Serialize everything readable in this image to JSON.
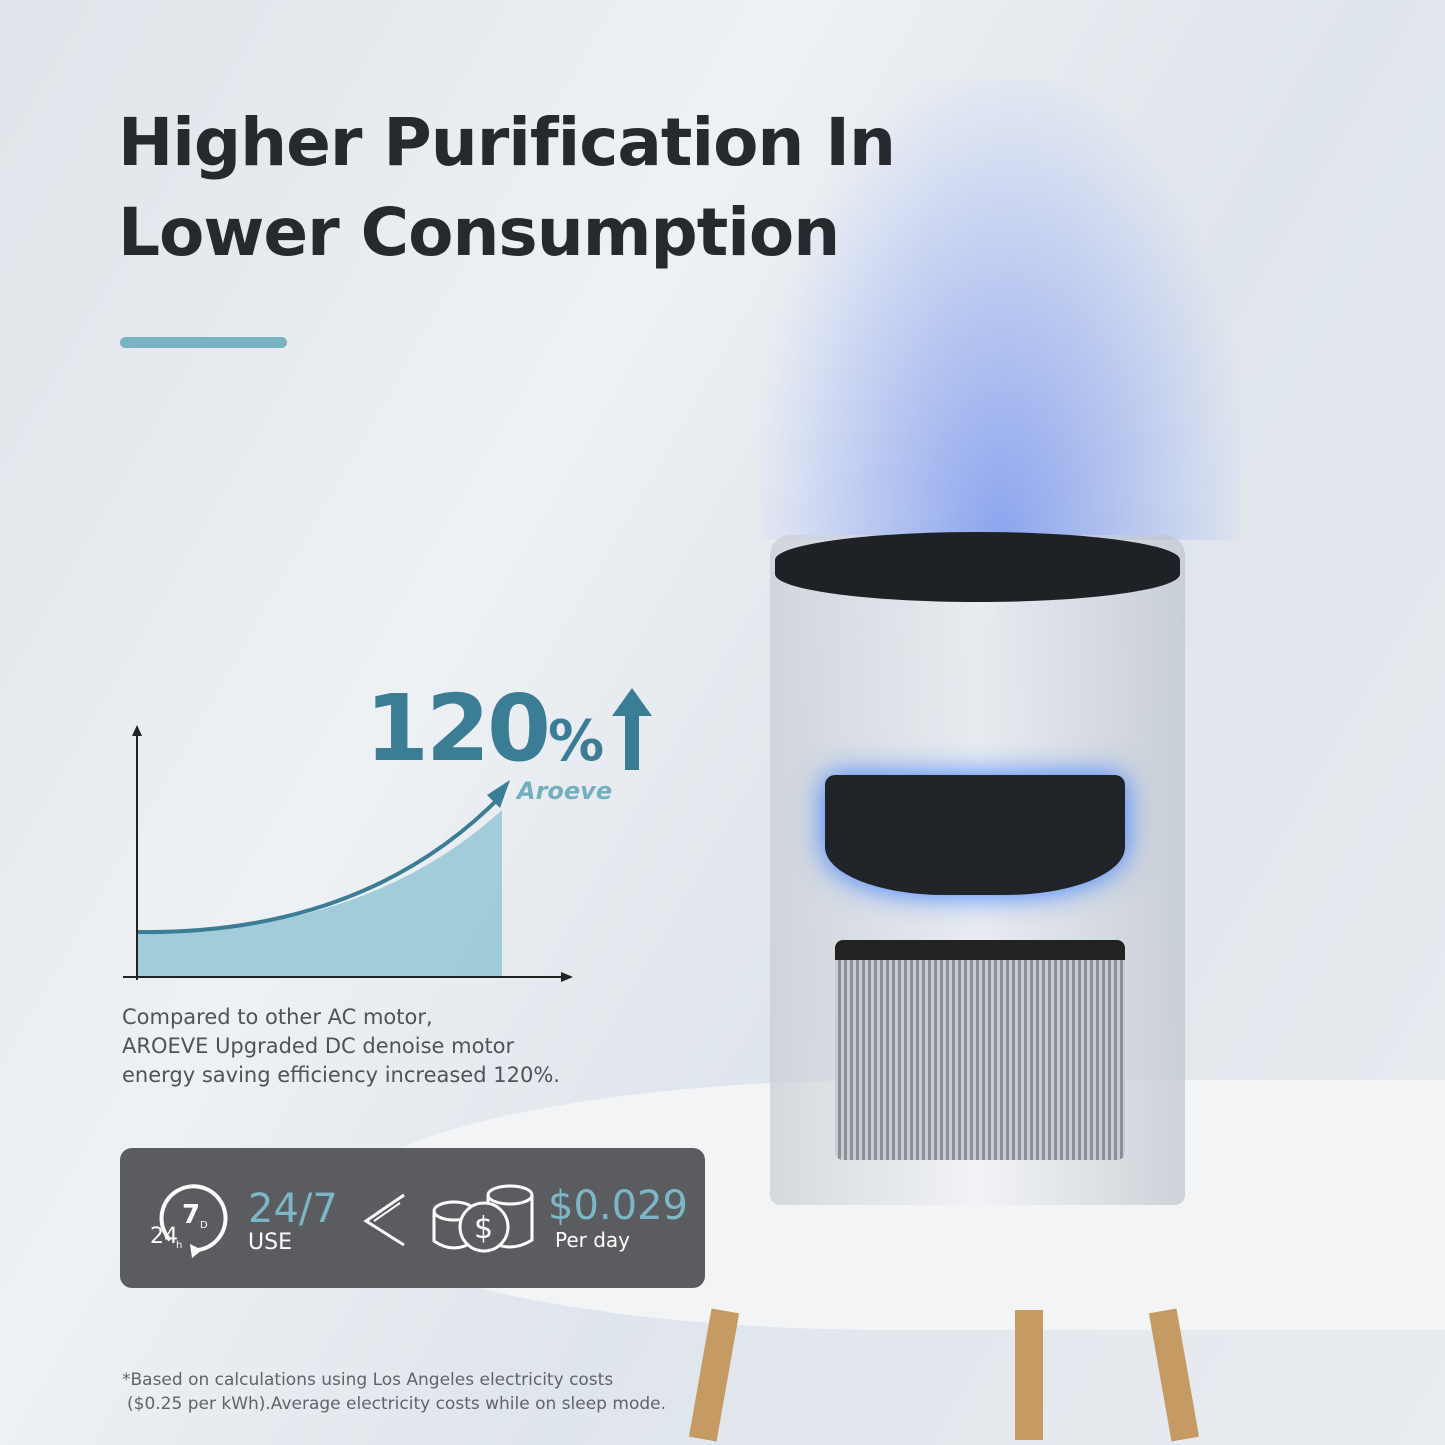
{
  "headline": {
    "line1": "Higher Purification In",
    "line2": "Lower Consumption"
  },
  "accent_color": "#78b3c4",
  "stat": {
    "value": "120",
    "unit": "%",
    "icon": "arrow-up-icon"
  },
  "brand": "Aroeve",
  "description": [
    "Compared to other AC motor,",
    "AROEVE Upgraded DC denoise motor",
    "energy saving efficiency increased 120%."
  ],
  "panel": {
    "clock_icon": "clock-24h-7d-icon",
    "clock_24": "24",
    "clock_h": "h",
    "clock_7": "7",
    "clock_d": "D",
    "usage_value": "24/7",
    "usage_label": "USE",
    "comparator": "<",
    "coins_icon": "coins-dollar-icon",
    "cost_value": "$0.029",
    "cost_label": "Per day"
  },
  "footnote": [
    "*Based on calculations using Los Angeles electricity costs",
    "($0.25 per kWh).Average electricity costs while on sleep mode."
  ]
}
